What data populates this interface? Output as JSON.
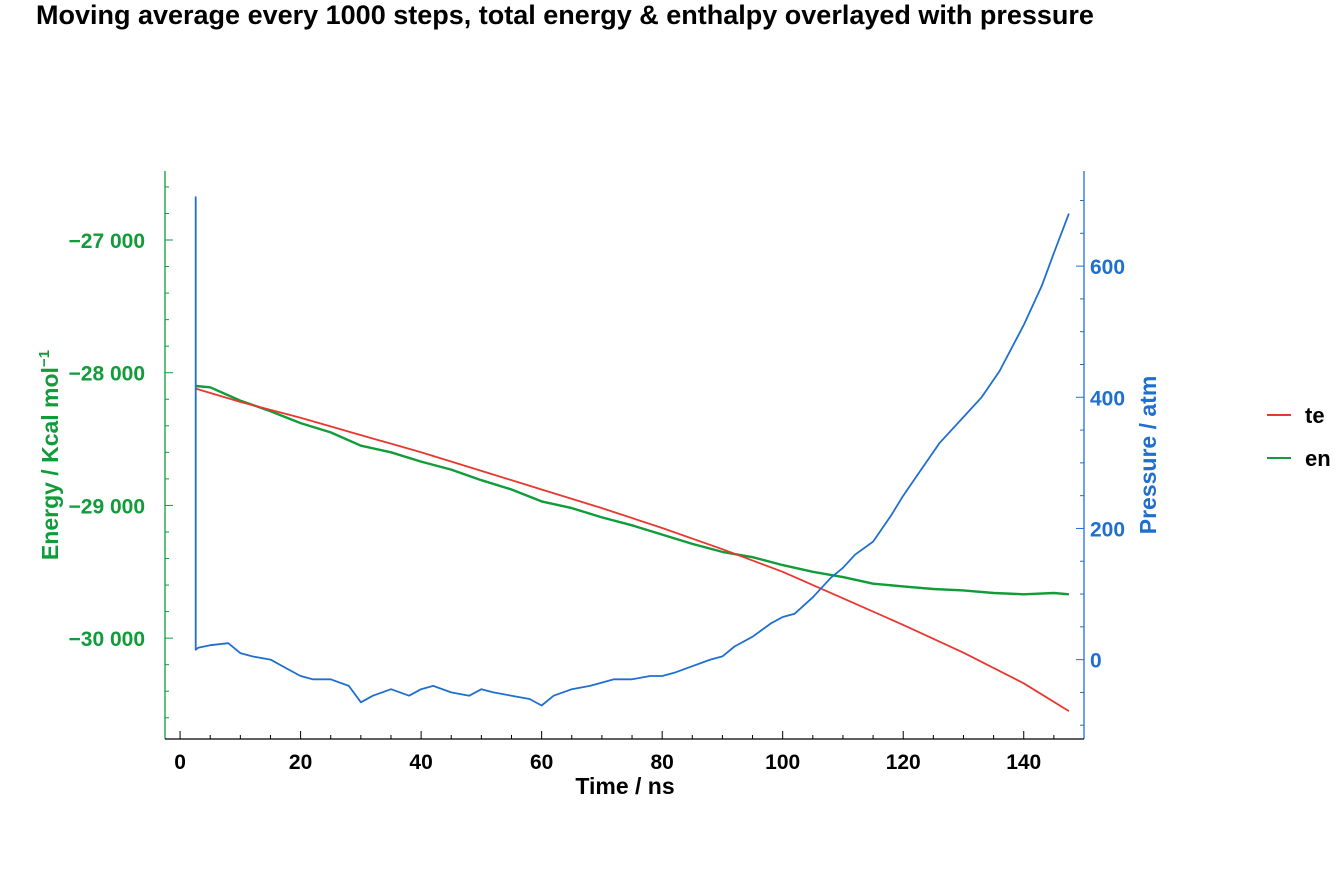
{
  "title": "Moving average every 1000 steps, total energy & enthalpy overlayed with pressure",
  "chart_data": {
    "type": "line",
    "title": "Moving average every 1000 steps, total energy & enthalpy overlayed with pressure",
    "xlabel": "Time / ns",
    "ylabel_left": "Energy / Kcal mol",
    "ylabel_left_superscript": "−1",
    "ylabel_right": "Pressure / atm",
    "xlim": [
      -2.5,
      150
    ],
    "ylim_left": [
      -30760,
      -26480
    ],
    "ylim_right": [
      -121,
      745
    ],
    "x_ticks": [
      0,
      20,
      40,
      60,
      80,
      100,
      120,
      140
    ],
    "y_left_ticks": [
      -27000,
      -28000,
      -29000,
      -30000
    ],
    "y_left_tick_labels": [
      "−27 000",
      "−28 000",
      "−29 000",
      "−30 000"
    ],
    "y_right_ticks": [
      0,
      200,
      400,
      600
    ],
    "y_right_tick_labels": [
      "0",
      "200",
      "400",
      "600"
    ],
    "grid": false,
    "legend_position": "right",
    "colors": {
      "te": "#e8372e",
      "en": "#119c3a",
      "pressure": "#1f6fd0",
      "left_axis": "#119c3a",
      "right_axis": "#1f6fd0"
    },
    "series": [
      {
        "name": "te",
        "axis": "left",
        "x": [
          2.6,
          10,
          20,
          30,
          40,
          50,
          60,
          70,
          80,
          90,
          100,
          110,
          120,
          130,
          140,
          147.5
        ],
        "y": [
          -28120,
          -28220,
          -28340,
          -28470,
          -28600,
          -28740,
          -28880,
          -29020,
          -29170,
          -29330,
          -29500,
          -29700,
          -29900,
          -30110,
          -30340,
          -30550
        ]
      },
      {
        "name": "en",
        "axis": "left",
        "x": [
          2.6,
          5,
          10,
          15,
          20,
          25,
          30,
          35,
          40,
          45,
          50,
          55,
          60,
          65,
          70,
          75,
          80,
          85,
          90,
          95,
          100,
          105,
          110,
          115,
          120,
          125,
          130,
          135,
          140,
          145,
          147.5
        ],
        "y": [
          -28100,
          -28110,
          -28210,
          -28290,
          -28380,
          -28450,
          -28550,
          -28600,
          -28670,
          -28730,
          -28810,
          -28880,
          -28970,
          -29020,
          -29090,
          -29150,
          -29220,
          -29290,
          -29350,
          -29390,
          -29450,
          -29500,
          -29540,
          -29590,
          -29610,
          -29630,
          -29640,
          -29660,
          -29670,
          -29660,
          -29670
        ]
      },
      {
        "name": "pressure",
        "axis": "right",
        "x": [
          2.6,
          2.6,
          2.6,
          3,
          5,
          8,
          10,
          12,
          15,
          18,
          20,
          22,
          25,
          28,
          30,
          32,
          35,
          38,
          40,
          42,
          45,
          48,
          50,
          52,
          55,
          58,
          60,
          62,
          65,
          68,
          70,
          72,
          75,
          78,
          80,
          82,
          85,
          88,
          90,
          92,
          95,
          98,
          100,
          102,
          105,
          108,
          110,
          112,
          115,
          118,
          120,
          123,
          126,
          130,
          133,
          136,
          140,
          143,
          145,
          147.5
        ],
        "y": [
          420,
          705,
          15,
          18,
          22,
          25,
          10,
          5,
          0,
          -15,
          -25,
          -30,
          -30,
          -40,
          -65,
          -55,
          -45,
          -55,
          -45,
          -40,
          -50,
          -55,
          -45,
          -50,
          -55,
          -60,
          -70,
          -55,
          -45,
          -40,
          -35,
          -30,
          -30,
          -25,
          -25,
          -20,
          -10,
          0,
          5,
          20,
          35,
          55,
          65,
          70,
          95,
          125,
          140,
          160,
          180,
          220,
          250,
          290,
          330,
          370,
          400,
          440,
          510,
          570,
          620,
          680
        ]
      }
    ]
  }
}
